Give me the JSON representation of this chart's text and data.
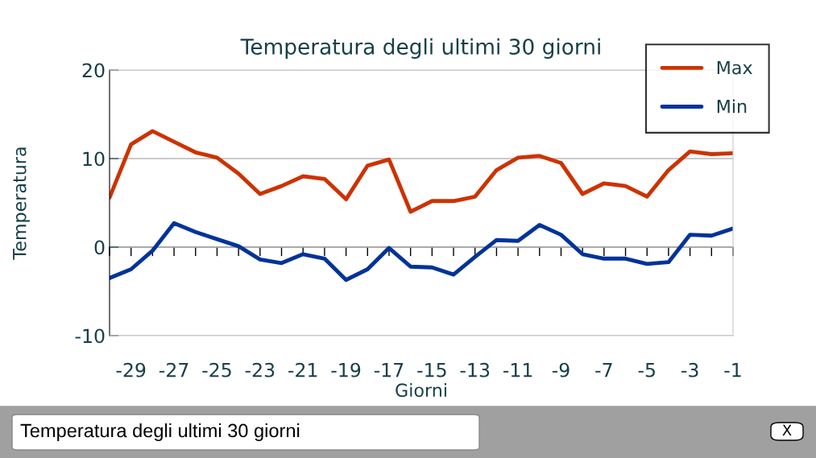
{
  "chart_data": {
    "type": "line",
    "title": "Temperatura degli ultimi 30 giorni",
    "xlabel": "Giorni",
    "ylabel": "Temperatura",
    "x": [
      -30,
      -29,
      -28,
      -27,
      -26,
      -25,
      -24,
      -23,
      -22,
      -21,
      -20,
      -19,
      -18,
      -17,
      -16,
      -15,
      -14,
      -13,
      -12,
      -11,
      -10,
      -9,
      -8,
      -7,
      -6,
      -5,
      -4,
      -3,
      -2,
      -1
    ],
    "series": [
      {
        "name": "Max",
        "color": "#cc3300",
        "values": [
          5.6,
          11.6,
          13.1,
          11.9,
          10.7,
          10.1,
          8.3,
          6.0,
          6.9,
          8.0,
          7.7,
          5.4,
          9.2,
          9.9,
          4.0,
          5.2,
          5.2,
          5.7,
          8.7,
          10.1,
          10.3,
          9.5,
          6.0,
          7.2,
          6.9,
          5.7,
          8.7,
          10.8,
          10.5,
          10.6
        ]
      },
      {
        "name": "Min",
        "color": "#003399",
        "values": [
          -3.5,
          -2.5,
          -0.4,
          2.7,
          1.7,
          0.9,
          0.1,
          -1.4,
          -1.8,
          -0.8,
          -1.3,
          -3.7,
          -2.5,
          -0.1,
          -2.2,
          -2.3,
          -3.1,
          -1.1,
          0.8,
          0.7,
          2.5,
          1.4,
          -0.8,
          -1.3,
          -1.3,
          -1.9,
          -1.7,
          1.4,
          1.3,
          2.1
        ]
      }
    ],
    "xlim": [
      -30,
      -1
    ],
    "xticks": [
      {
        "value": -30,
        "label": null
      },
      -29,
      {
        "value": -28,
        "label": null
      },
      -27,
      {
        "value": -26,
        "label": null
      },
      -25,
      {
        "value": -24,
        "label": null
      },
      -23,
      {
        "value": -22,
        "label": null
      },
      -21,
      {
        "value": -20,
        "label": null
      },
      -19,
      {
        "value": -18,
        "label": null
      },
      -17,
      {
        "value": -16,
        "label": null
      },
      -15,
      {
        "value": -14,
        "label": null
      },
      -13,
      {
        "value": -12,
        "label": null
      },
      -11,
      {
        "value": -10,
        "label": null
      },
      -9,
      {
        "value": -8,
        "label": null
      },
      -7,
      {
        "value": -6,
        "label": null
      },
      -5,
      {
        "value": -4,
        "label": null
      },
      -3,
      {
        "value": -2,
        "label": null
      },
      -1
    ],
    "ylim": [
      -10,
      20
    ],
    "yticks": [
      -10,
      0,
      10,
      20
    ],
    "grid": "y",
    "legend": "top right",
    "marker": "none",
    "line_style": "solid",
    "annotations": [
      "Temperatura degli ultimi 30 giorni",
      "X"
    ]
  }
}
